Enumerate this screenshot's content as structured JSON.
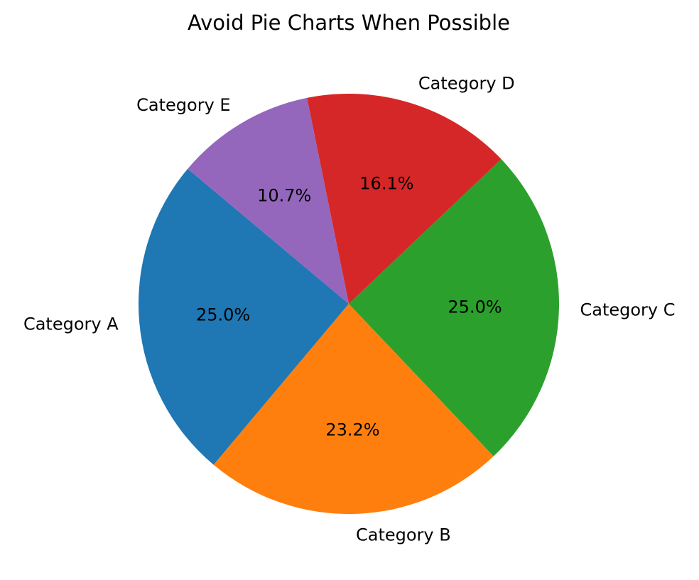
{
  "chart_data": {
    "type": "pie",
    "title": "Avoid Pie Charts When Possible",
    "categories": [
      "Category A",
      "Category B",
      "Category C",
      "Category D",
      "Category E"
    ],
    "values": [
      25.0,
      23.2,
      25.0,
      16.1,
      10.7
    ],
    "value_labels": [
      "25.0%",
      "23.2%",
      "25.0%",
      "16.1%",
      "10.7%"
    ],
    "colors": [
      "#1f77b4",
      "#ff7f0e",
      "#2ca02c",
      "#d62728",
      "#9467bd"
    ],
    "start_angle_deg": 140,
    "direction": "counterclockwise",
    "legend": "none"
  }
}
